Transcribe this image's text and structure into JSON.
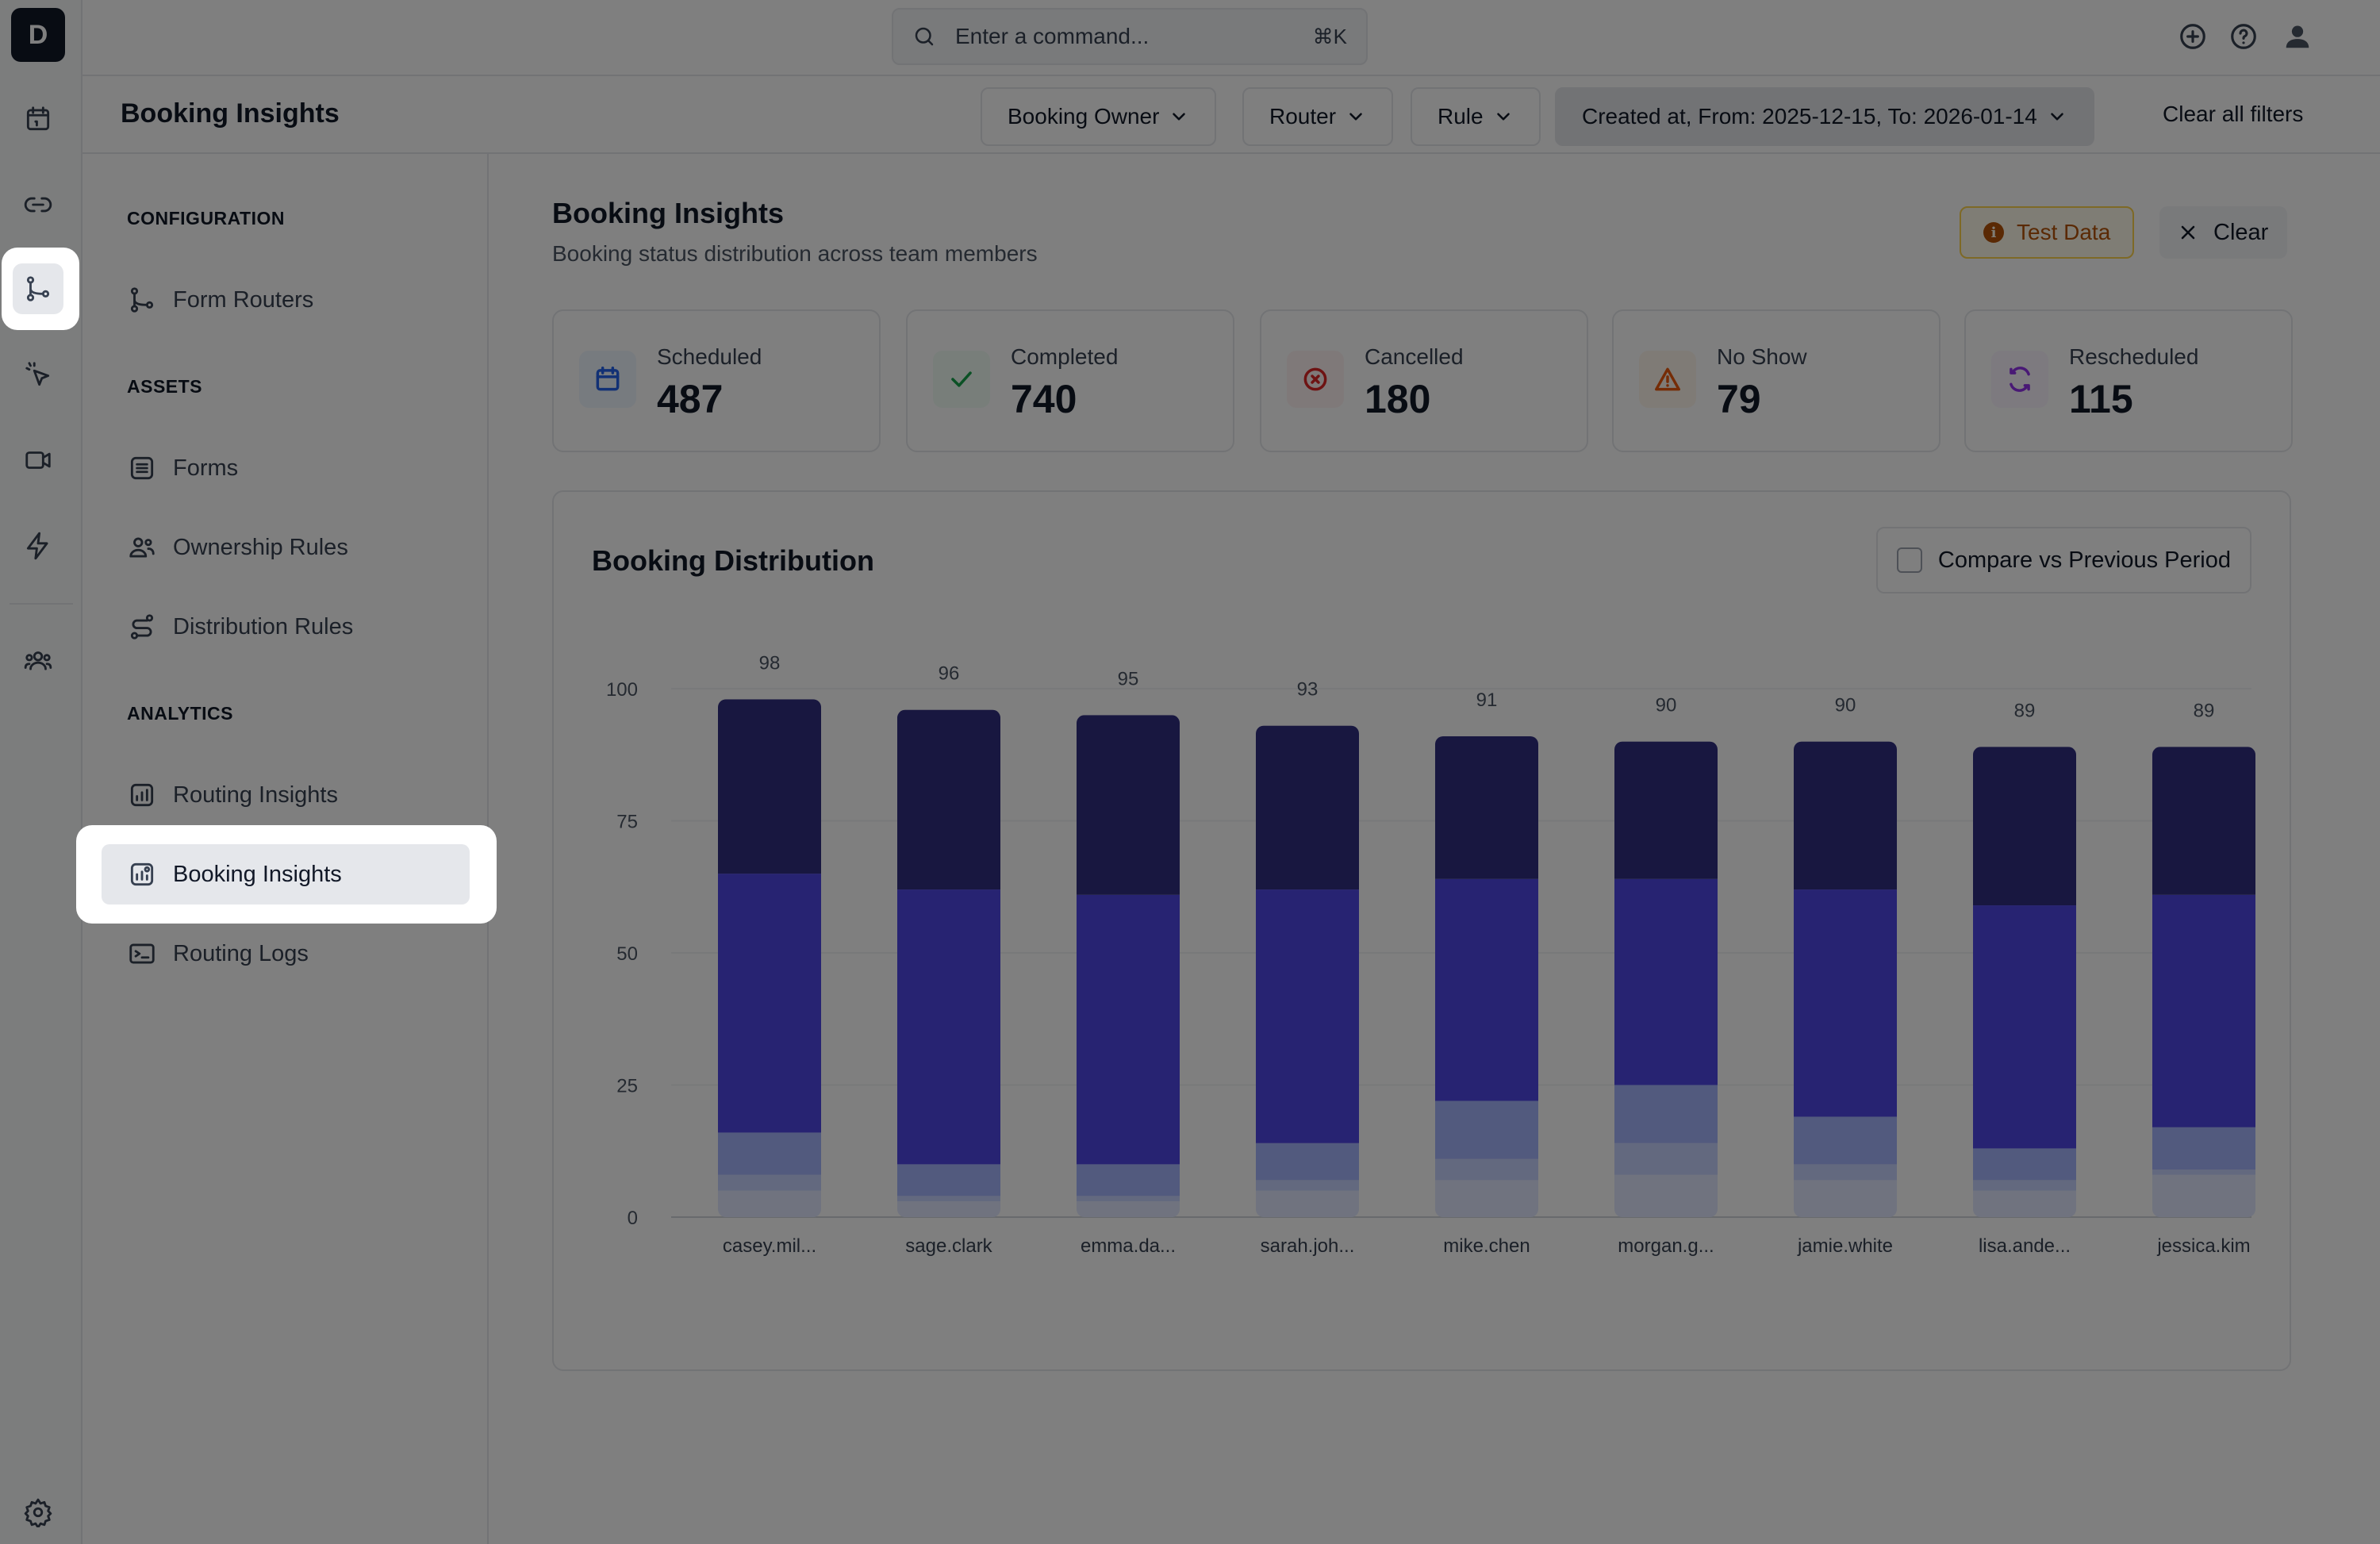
{
  "app": {
    "logo_letter": "D",
    "command_placeholder": "Enter a command...",
    "command_shortcut": "⌘K"
  },
  "rail_icons": [
    "calendar-icon",
    "link-icon",
    "git-branch-icon",
    "cursor-click-icon",
    "video-icon",
    "lightning-icon",
    "users-icon",
    "gear-icon"
  ],
  "header": {
    "title": "Booking Insights",
    "filters": [
      {
        "label": "Booking Owner"
      },
      {
        "label": "Router"
      },
      {
        "label": "Rule"
      },
      {
        "label": "Created at, From: 2025-12-15, To: 2026-01-14"
      }
    ],
    "clear_all": "Clear all filters"
  },
  "sidebar": {
    "sections": [
      {
        "label": "CONFIGURATION",
        "items": [
          {
            "label": "Form Routers",
            "icon": "git-branch-icon"
          }
        ]
      },
      {
        "label": "ASSETS",
        "items": [
          {
            "label": "Forms",
            "icon": "list-icon"
          },
          {
            "label": "Ownership Rules",
            "icon": "user-group-icon"
          },
          {
            "label": "Distribution Rules",
            "icon": "route-icon"
          }
        ]
      },
      {
        "label": "ANALYTICS",
        "items": [
          {
            "label": "Routing Insights",
            "icon": "chart-icon"
          },
          {
            "label": "Booking Insights",
            "icon": "chart-user-icon",
            "active": true
          },
          {
            "label": "Routing Logs",
            "icon": "terminal-icon"
          }
        ]
      }
    ]
  },
  "main": {
    "title": "Booking Insights",
    "subtitle": "Booking status distribution across team members",
    "test_data_label": "Test Data",
    "clear_label": "Clear",
    "stats": [
      {
        "label": "Scheduled",
        "value": "487",
        "icon": "calendar-icon",
        "color": "#2563eb",
        "bg": "#eff6ff"
      },
      {
        "label": "Completed",
        "value": "740",
        "icon": "check-icon",
        "color": "#16a34a",
        "bg": "#f0fdf4"
      },
      {
        "label": "Cancelled",
        "value": "180",
        "icon": "x-circle-icon",
        "color": "#dc2626",
        "bg": "#fef2f2"
      },
      {
        "label": "No Show",
        "value": "79",
        "icon": "warning-icon",
        "color": "#ea580c",
        "bg": "#fff7ed"
      },
      {
        "label": "Rescheduled",
        "value": "115",
        "icon": "refresh-icon",
        "color": "#9333ea",
        "bg": "#faf5ff"
      }
    ],
    "chart_title": "Booking Distribution",
    "compare_label": "Compare vs Previous Period"
  },
  "chart_data": {
    "type": "bar",
    "stacked": true,
    "categories": [
      "casey.mil...",
      "sage.clark",
      "emma.da...",
      "sarah.joh...",
      "mike.chen",
      "morgan.g...",
      "jamie.white",
      "lisa.ande...",
      "jessica.kim"
    ],
    "totals": [
      98,
      96,
      95,
      93,
      91,
      90,
      90,
      89,
      89
    ],
    "series": [
      {
        "values": [
          5,
          3,
          3,
          5,
          7,
          8,
          7,
          5,
          8
        ],
        "color": "#e0e7ff"
      },
      {
        "values": [
          3,
          1,
          1,
          2,
          4,
          6,
          3,
          2,
          1
        ],
        "color": "#c7d2fe"
      },
      {
        "values": [
          8,
          6,
          6,
          7,
          11,
          11,
          9,
          6,
          8
        ],
        "color": "#a5b4fc"
      },
      {
        "values": [
          49,
          52,
          51,
          48,
          42,
          39,
          43,
          46,
          44
        ],
        "color": "#4f46e5"
      },
      {
        "values": [
          33,
          34,
          34,
          31,
          27,
          26,
          28,
          30,
          28
        ],
        "color": "#312e81"
      }
    ],
    "yticks": [
      0,
      25,
      50,
      75,
      100
    ],
    "ylim": [
      0,
      100
    ],
    "grid": true
  }
}
